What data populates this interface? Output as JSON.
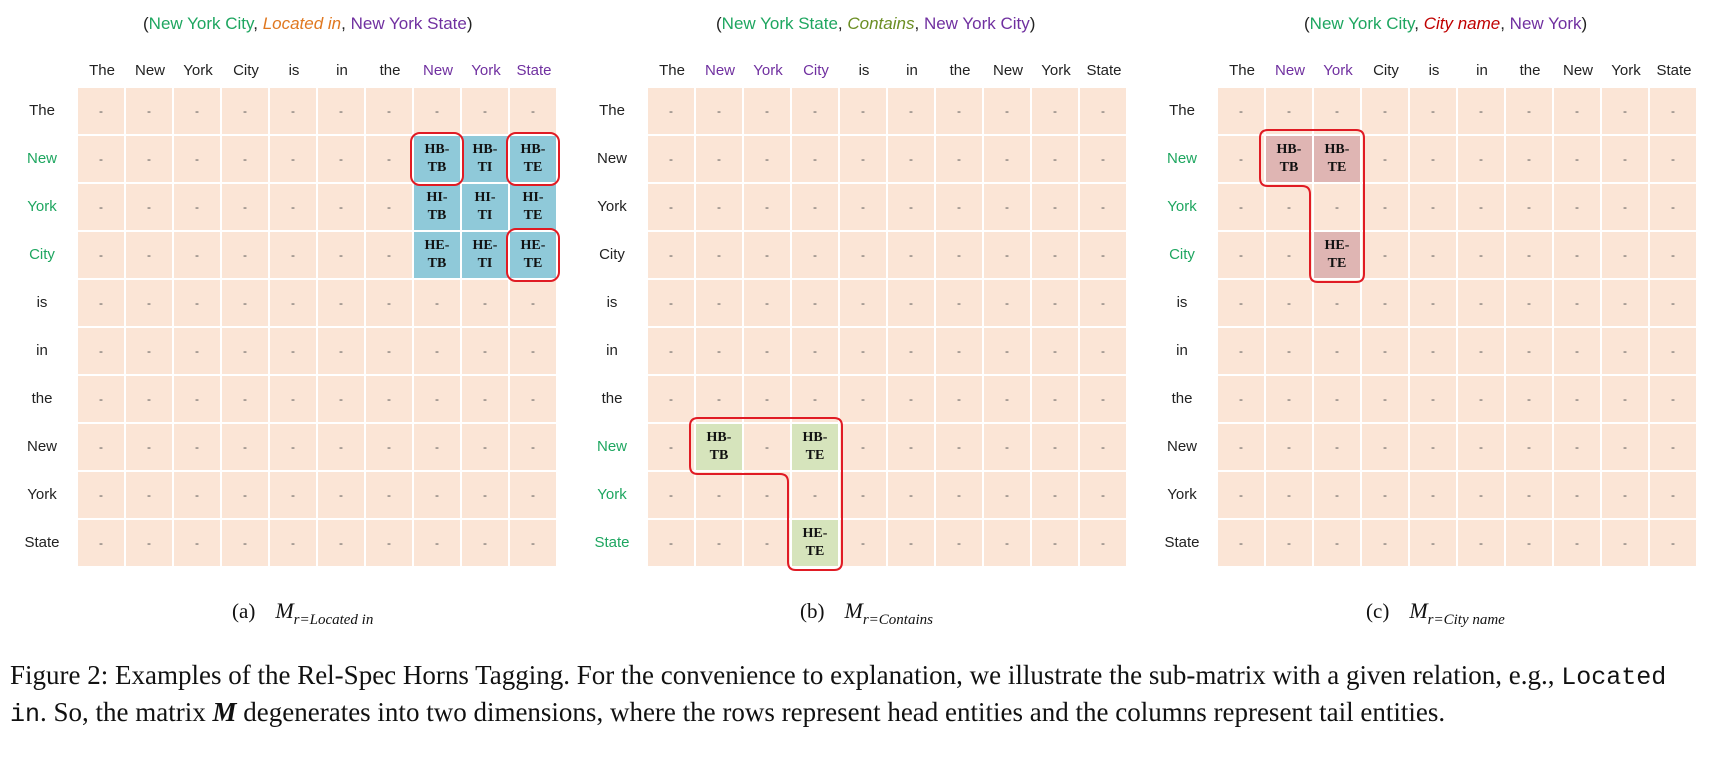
{
  "colors": {
    "background_cell": "#fbe5d6",
    "entity_green": "#1ea660",
    "tail_purple": "#7030a0",
    "highlight_red": "#e01b24",
    "fill_a": "#8fc9d9",
    "fill_b": "#d6e4bc",
    "fill_c": "#dfb5b3"
  },
  "tokens": [
    "The",
    "New",
    "York",
    "City",
    "is",
    "in",
    "the",
    "New",
    "York",
    "State"
  ],
  "empty_cell": "-",
  "panels": [
    {
      "id": "a",
      "triple": {
        "open": "(",
        "head": "New York City",
        "sep1": ", ",
        "relation": "Located in",
        "sep2": ", ",
        "tail": "New York State",
        "close": ")"
      },
      "relation_color": "#e07820",
      "fill": "#8fc9d9",
      "row_highlight": [
        1,
        2,
        3
      ],
      "row_highlight_color": "green",
      "col_highlight": [
        7,
        8,
        9
      ],
      "tags": [
        {
          "r": 1,
          "c": 7,
          "top": "HB-",
          "bot": "TB"
        },
        {
          "r": 1,
          "c": 8,
          "top": "HB-",
          "bot": "TI"
        },
        {
          "r": 1,
          "c": 9,
          "top": "HB-",
          "bot": "TE"
        },
        {
          "r": 2,
          "c": 7,
          "top": "HI-",
          "bot": "TB"
        },
        {
          "r": 2,
          "c": 8,
          "top": "HI-",
          "bot": "TI"
        },
        {
          "r": 2,
          "c": 9,
          "top": "HI-",
          "bot": "TE"
        },
        {
          "r": 3,
          "c": 7,
          "top": "HE-",
          "bot": "TB"
        },
        {
          "r": 3,
          "c": 8,
          "top": "HE-",
          "bot": "TI"
        },
        {
          "r": 3,
          "c": 9,
          "top": "HE-",
          "bot": "TE"
        }
      ],
      "caption": {
        "label": "(a)",
        "sub": "r=Located in"
      }
    },
    {
      "id": "b",
      "triple": {
        "open": "(",
        "head": "New York State",
        "sep1": ", ",
        "relation": "Contains",
        "sep2": ", ",
        "tail": "New York City",
        "close": ")"
      },
      "relation_color": "#6b8e23",
      "fill": "#d6e4bc",
      "row_highlight": [
        7,
        8,
        9
      ],
      "row_highlight_color": "green",
      "col_highlight": [
        1,
        2,
        3
      ],
      "tags": [
        {
          "r": 7,
          "c": 1,
          "top": "HB-",
          "bot": "TB"
        },
        {
          "r": 7,
          "c": 3,
          "top": "HB-",
          "bot": "TE"
        },
        {
          "r": 9,
          "c": 3,
          "top": "HE-",
          "bot": "TE"
        }
      ],
      "caption": {
        "label": "(b)",
        "sub": "r=Contains"
      }
    },
    {
      "id": "c",
      "triple": {
        "open": "(",
        "head": "New York City",
        "sep1": ", ",
        "relation": "City name",
        "sep2": ", ",
        "tail": "New York",
        "close": ")"
      },
      "relation_color": "#c00000",
      "fill": "#dfb5b3",
      "row_highlight": [
        1,
        2,
        3
      ],
      "row_highlight_color": "green",
      "col_highlight": [
        1,
        2
      ],
      "tags": [
        {
          "r": 1,
          "c": 1,
          "top": "HB-",
          "bot": "TB"
        },
        {
          "r": 1,
          "c": 2,
          "top": "HB-",
          "bot": "TE"
        },
        {
          "r": 3,
          "c": 2,
          "top": "HE-",
          "bot": "TE"
        }
      ],
      "caption": {
        "label": "(c)",
        "sub": "r=City name"
      }
    }
  ],
  "figure_caption": {
    "part1": "Figure 2: Examples of the Rel-Spec Horns Tagging. For the convenience to explanation, we illustrate the sub-matrix with a given relation, e.g., ",
    "code": "Located in",
    "part2": ". So, the matrix ",
    "matrix_symbol": "M",
    "part3": " degenerates into two dimensions, where the rows represent head entities and the columns represent tail entities."
  }
}
